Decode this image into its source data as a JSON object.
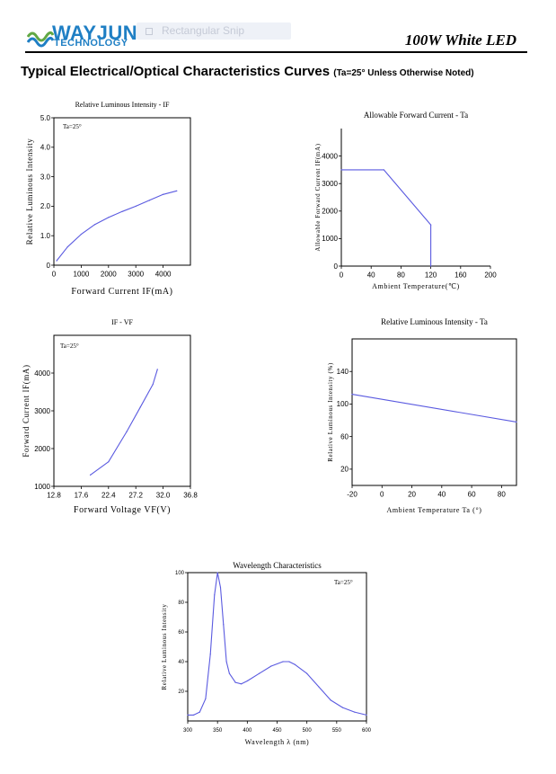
{
  "header": {
    "brand_name": "WAYJUN",
    "brand_sub": "TECHNOLOGY",
    "snip_label": "Rectangular Snip",
    "product_title": "100W White LED",
    "logo_colors": [
      "#1f7fc4",
      "#62a844"
    ]
  },
  "section": {
    "title": "Typical Electrical/Optical Characteristics Curves",
    "note": "(Ta=25° Unless Otherwise Noted)"
  },
  "chart_data": [
    {
      "id": "c1",
      "type": "line",
      "title": "Relative Luminous Intensity - IF",
      "xlabel": "Forward Current IF(mA)",
      "ylabel": "Relative Luminous Intensity",
      "annotation": "Ta=25°",
      "xlim": [
        0,
        5000
      ],
      "ylim": [
        0,
        5
      ],
      "xticks": [
        0,
        1000,
        2000,
        3000,
        4000
      ],
      "xtick_labels": [
        "0",
        "1000",
        "2000",
        "3000",
        "4000"
      ],
      "yticks": [
        0,
        1,
        2,
        3,
        4,
        5
      ],
      "ytick_labels": [
        "0",
        "1.0",
        "2.0",
        "3.0",
        "4.0",
        "5.0"
      ],
      "grid": false,
      "color": "#5a5ae0",
      "x": [
        100,
        500,
        1000,
        1500,
        2000,
        2500,
        3000,
        3500,
        4000,
        4500
      ],
      "y": [
        0.15,
        0.62,
        1.05,
        1.38,
        1.62,
        1.82,
        2.0,
        2.2,
        2.4,
        2.52
      ]
    },
    {
      "id": "c2",
      "type": "line",
      "title": "Allowable Forward Current - Ta",
      "xlabel": "Ambient Temperature(℃)",
      "ylabel": "Allowable Forward Current IF(mA)",
      "annotation": "",
      "xlim": [
        0,
        200
      ],
      "ylim": [
        0,
        5000
      ],
      "xticks": [
        0,
        40,
        80,
        120,
        160,
        200
      ],
      "xtick_labels": [
        "0",
        "40",
        "80",
        "120",
        "160",
        "200"
      ],
      "yticks": [
        0,
        1000,
        2000,
        3000,
        4000
      ],
      "ytick_labels": [
        "0",
        "1000",
        "2000",
        "3000",
        "4000"
      ],
      "grid": false,
      "color": "#5a5ae0",
      "x": [
        0,
        57,
        120,
        120
      ],
      "y": [
        3500,
        3500,
        1500,
        0
      ]
    },
    {
      "id": "c3",
      "type": "line",
      "title": "IF - VF",
      "xlabel": "Forward Voltage VF(V)",
      "ylabel": "Forward Current IF(mA)",
      "annotation": "Ta=25°",
      "xlim": [
        12.8,
        36.8
      ],
      "ylim": [
        1000,
        5000
      ],
      "xticks": [
        12.8,
        17.6,
        22.4,
        27.2,
        32.0,
        36.8
      ],
      "xtick_labels": [
        "12.8",
        "17.6",
        "22.4",
        "27.2",
        "32.0",
        "36.8"
      ],
      "yticks": [
        1000,
        2000,
        3000,
        4000
      ],
      "ytick_labels": [
        "1000",
        "2000",
        "3000",
        "4000"
      ],
      "grid": false,
      "color": "#5a5ae0",
      "x": [
        19.2,
        22.4,
        25.6,
        28.0,
        30.2,
        31.0
      ],
      "y": [
        1300,
        1650,
        2450,
        3100,
        3700,
        4100
      ]
    },
    {
      "id": "c4",
      "type": "line",
      "title": "Relative Luminous Intensity - Ta",
      "xlabel": "Ambient Temperature Ta (°)",
      "ylabel": "Relative Luminous Intensity (%)",
      "annotation": "",
      "xlim": [
        -20,
        90
      ],
      "ylim": [
        0,
        180
      ],
      "xticks": [
        -20,
        0,
        20,
        40,
        60,
        80
      ],
      "xtick_labels": [
        "-20",
        "0",
        "20",
        "40",
        "60",
        "80"
      ],
      "yticks": [
        20,
        60,
        100,
        140
      ],
      "ytick_labels": [
        "20",
        "60",
        "100",
        "140"
      ],
      "grid": false,
      "color": "#5a5ae0",
      "x": [
        -20,
        90
      ],
      "y": [
        112,
        78
      ]
    },
    {
      "id": "c5",
      "type": "line",
      "title": "Wavelength Characteristics",
      "xlabel": "Wavelength λ (nm)",
      "ylabel": "Relative Luminous Intensity",
      "annotation": "Ta=25°",
      "xlim": [
        300,
        600
      ],
      "ylim": [
        0,
        100
      ],
      "xticks": [
        300,
        350,
        400,
        450,
        500,
        550,
        600
      ],
      "xtick_labels": [
        "300",
        "350",
        "400",
        "450",
        "500",
        "550",
        "600"
      ],
      "yticks": [
        20,
        40,
        60,
        80,
        100
      ],
      "ytick_labels": [
        "20",
        "40",
        "60",
        "80",
        "100"
      ],
      "grid": false,
      "color": "#5a5ae0",
      "x": [
        300,
        310,
        320,
        330,
        338,
        345,
        350,
        355,
        360,
        365,
        370,
        380,
        390,
        400,
        420,
        440,
        460,
        470,
        480,
        500,
        520,
        540,
        560,
        580,
        600
      ],
      "y": [
        4,
        4,
        6,
        15,
        45,
        85,
        100,
        90,
        65,
        40,
        32,
        26,
        25,
        27,
        32,
        37,
        40,
        40,
        38,
        32,
        23,
        14,
        9,
        6,
        4
      ]
    }
  ]
}
